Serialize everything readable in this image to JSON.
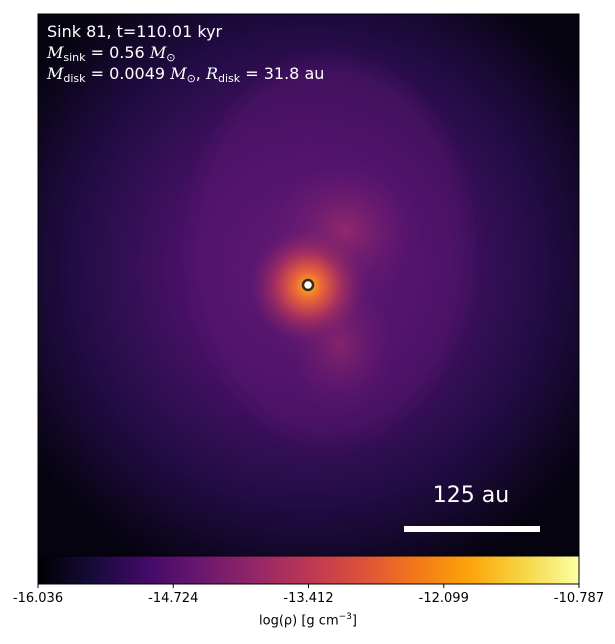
{
  "annotation": {
    "line1": "Sink 81, t=110.01 kyr",
    "m_sink_symbol": "M",
    "m_sink_sub": "sink",
    "m_sink_value": " = 0.56 ",
    "m_sink_unit": "M",
    "m_sink_unit_sub": "⊙",
    "m_disk_symbol": "M",
    "m_disk_sub": "disk",
    "m_disk_value": " = 0.0049 ",
    "m_disk_unit": "M",
    "m_disk_unit_sub": "⊙",
    "r_disk_symbol": "R",
    "r_disk_sub": "disk",
    "r_disk_value": " = 31.8 au"
  },
  "scale_bar": {
    "label": "125 au"
  },
  "colorbar": {
    "colormap": "inferno",
    "min": -16.036,
    "max": -10.787,
    "ticks": [
      "-16.036",
      "-14.724",
      "-13.412",
      "-12.099",
      "-10.787"
    ],
    "label_main": "log(ρ) [g cm",
    "label_sup": "−3",
    "label_end": "]"
  },
  "colors": {
    "sink_marker_fill": "#ffffff",
    "sink_marker_edge": "#3a2a10",
    "scale_bar": "#ffffff"
  }
}
